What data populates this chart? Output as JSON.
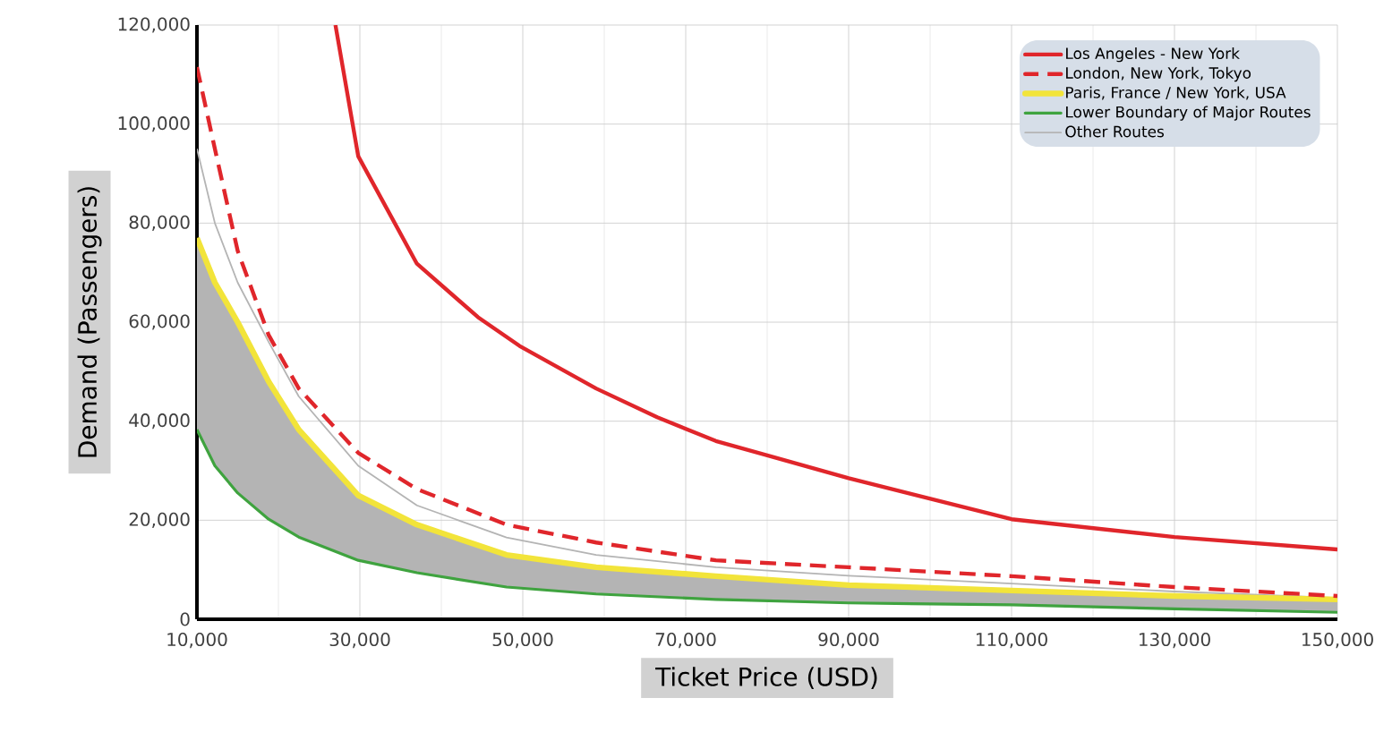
{
  "chart_data": {
    "type": "line",
    "xlabel": "Ticket Price (USD)",
    "ylabel": "Demand (Passengers)",
    "x": [
      10000,
      12200,
      15000,
      18800,
      22500,
      29800,
      37000,
      48000,
      59000,
      73700,
      90000,
      110000,
      130000,
      150000
    ],
    "series": [
      {
        "name": "Los Angeles - New York",
        "color": "#e0262b",
        "x": [
          27000,
          29800,
          37000,
          44500,
          49600,
          59000,
          66500,
          73700,
          90000,
          110000,
          130000,
          150000
        ],
        "values": [
          120000,
          93500,
          71800,
          61000,
          55200,
          46600,
          40800,
          36000,
          28500,
          20200,
          16600,
          14100
        ]
      },
      {
        "name": "London, New York, Tokyo",
        "color": "#e0262b",
        "line_style": "dashed",
        "values": [
          111500,
          95000,
          74400,
          57400,
          46600,
          33600,
          26300,
          19100,
          15500,
          11900,
          10500,
          8700,
          6500,
          4700
        ]
      },
      {
        "name": "Paris, France / New York, USA",
        "color": "#f2e43a",
        "values": [
          77000,
          68000,
          60000,
          48000,
          38300,
          25000,
          19100,
          13000,
          10500,
          8700,
          6900,
          5800,
          4700,
          4000
        ]
      },
      {
        "name": "Lower Boundary of Major Routes",
        "color": "#3fa33f",
        "values": [
          38300,
          31000,
          25500,
          20200,
          16600,
          11900,
          9400,
          6500,
          5100,
          4000,
          3300,
          2900,
          2100,
          1400
        ]
      },
      {
        "name": "Other Routes",
        "color": "#b4b4b4",
        "values": [
          95000,
          80000,
          68000,
          56000,
          45000,
          31000,
          23000,
          16500,
          13000,
          10500,
          8800,
          7200,
          5600,
          4300
        ],
        "lower": [
          38300,
          31000,
          25500,
          20200,
          16600,
          11900,
          9400,
          6500,
          5100,
          4000,
          3300,
          2900,
          2100,
          1400
        ],
        "upper": [
          77000,
          68000,
          60000,
          48000,
          38300,
          25000,
          19100,
          13000,
          10500,
          8700,
          6900,
          5800,
          4700,
          4000
        ]
      }
    ],
    "xlim": [
      10000,
      150000
    ],
    "ylim": [
      0,
      120000
    ],
    "xticks": [
      {
        "value": 10000,
        "label": "10,000"
      },
      {
        "value": 30000,
        "label": "30,000"
      },
      {
        "value": 50000,
        "label": "50,000"
      },
      {
        "value": 70000,
        "label": "70,000"
      },
      {
        "value": 90000,
        "label": "90,000"
      },
      {
        "value": 110000,
        "label": "110,000"
      },
      {
        "value": 130000,
        "label": "130,000"
      },
      {
        "value": 150000,
        "label": "150,000"
      }
    ],
    "yticks": [
      0,
      {
        "value": 20000,
        "label": "20,000"
      },
      {
        "value": 40000,
        "label": "40,000"
      },
      {
        "value": 60000,
        "label": "60,000"
      },
      {
        "value": 80000,
        "label": "80,000"
      },
      {
        "value": 100000,
        "label": "100,000"
      },
      {
        "value": 120000,
        "label": "120,000"
      }
    ],
    "grid": true,
    "legend": "top right",
    "marker": "none"
  }
}
